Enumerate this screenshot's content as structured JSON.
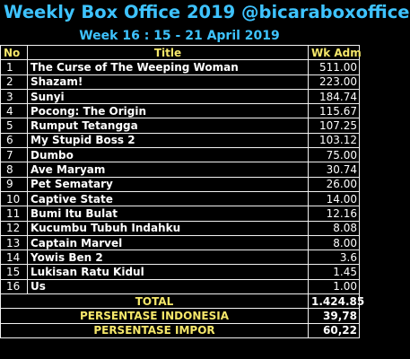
{
  "header": {
    "title": "Weekly Box Office 2019 @bicaraboxoffice",
    "week": "Week 16 : 15 - 21 April 2019"
  },
  "table": {
    "columns": [
      "No",
      "Title",
      "Wk Adm"
    ],
    "rows": [
      {
        "no": "1",
        "title": "The Curse of The Weeping Woman",
        "adm": "511.00"
      },
      {
        "no": "2",
        "title": "Shazam!",
        "adm": "223.00"
      },
      {
        "no": "3",
        "title": "Sunyi",
        "adm": "184.74"
      },
      {
        "no": "4",
        "title": "Pocong: The Origin",
        "adm": "115.67"
      },
      {
        "no": "5",
        "title": "Rumput Tetangga",
        "adm": "107.25"
      },
      {
        "no": "6",
        "title": "My Stupid Boss 2",
        "adm": "103.12"
      },
      {
        "no": "7",
        "title": "Dumbo",
        "adm": "75.00"
      },
      {
        "no": "8",
        "title": "Ave Maryam",
        "adm": "30.74"
      },
      {
        "no": "9",
        "title": "Pet Sematary",
        "adm": "26.00"
      },
      {
        "no": "10",
        "title": "Captive State",
        "adm": "14.00"
      },
      {
        "no": "11",
        "title": "Bumi Itu Bulat",
        "adm": "12.16"
      },
      {
        "no": "12",
        "title": "Kucumbu Tubuh Indahku",
        "adm": "8.08"
      },
      {
        "no": "13",
        "title": "Captain Marvel",
        "adm": "8.00"
      },
      {
        "no": "14",
        "title": "Yowis Ben 2",
        "adm": "3.6"
      },
      {
        "no": "15",
        "title": "Lukisan Ratu Kidul",
        "adm": "1.45"
      },
      {
        "no": "16",
        "title": "Us",
        "adm": "1.00"
      }
    ],
    "summary": [
      {
        "label": "TOTAL",
        "value": "1.424.85"
      },
      {
        "label": "PERSENTASE INDONESIA",
        "value": "39,78"
      },
      {
        "label": "PERSENTASE IMPOR",
        "value": "60,22"
      }
    ]
  },
  "colors": {
    "title": "#3ec3ff",
    "header_text": "#f5e76a",
    "background": "#000000",
    "text": "#ffffff"
  }
}
